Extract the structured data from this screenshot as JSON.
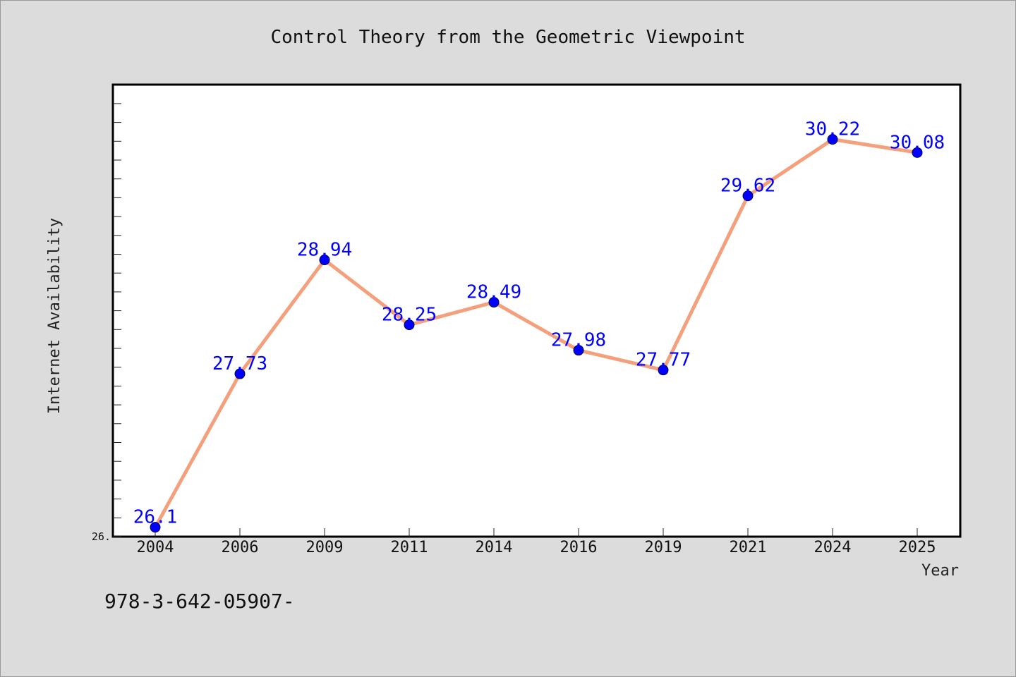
{
  "chart_data": {
    "type": "line",
    "title": "Control Theory from the Geometric Viewpoint",
    "xlabel": "Year",
    "ylabel": "Internet Availability",
    "categories": [
      "2004",
      "2006",
      "2009",
      "2011",
      "2014",
      "2016",
      "2019",
      "2021",
      "2024",
      "2025"
    ],
    "series": [
      {
        "values": [
          26.1,
          27.73,
          28.94,
          28.25,
          28.49,
          27.98,
          27.77,
          29.62,
          30.22,
          30.08
        ],
        "labels": [
          "26.1",
          "27.73",
          "28.94",
          "28.25",
          "28.49",
          "27.98",
          "27.77",
          "29.62",
          "30.22",
          "30.08"
        ]
      }
    ],
    "ylim": [
      26.0,
      30.8
    ],
    "ytick_labels": [
      {
        "value": 26.0,
        "label": "26."
      }
    ],
    "grid": false,
    "colors": {
      "line": "#f4a07c",
      "marker": "#0000ff",
      "data_label": "#0000ff",
      "plot_bg": "#ffffff",
      "figure_bg": "#dcdcdc"
    }
  },
  "footer_text": "978-3-642-05907-"
}
